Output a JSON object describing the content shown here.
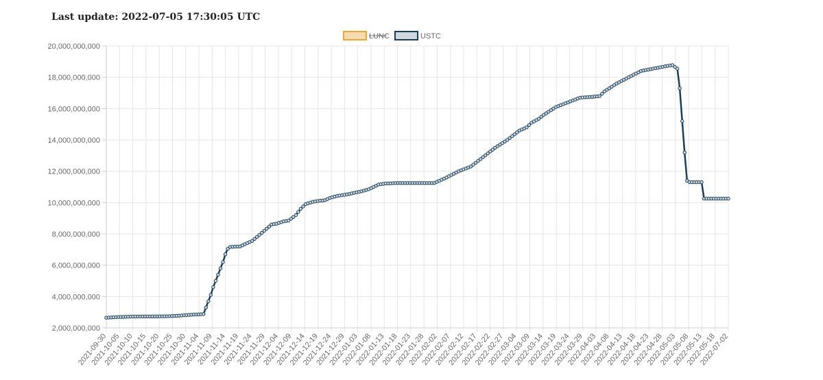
{
  "header": {
    "last_update": "Last update: 2022-07-05 17:30:05 UTC"
  },
  "colors": {
    "lunc": "#f5a623",
    "lunc_fill": "#f6d9b5",
    "ustc": "#183f5a",
    "ustc_fill": "#cfd8de"
  },
  "chart_data": {
    "type": "line",
    "y_ticks": [
      "20,000,000,000",
      "18,000,000,000",
      "16,000,000,000",
      "14,000,000,000",
      "12,000,000,000",
      "10,000,000,000",
      "8,000,000,000",
      "6,000,000,000",
      "4,000,000,000",
      "2,000,000,000"
    ],
    "ylim": [
      2000000000,
      20000000000
    ],
    "legend_position": "top",
    "grid": true,
    "x_ticks": [
      "2021-09-30",
      "2021-10-05",
      "2021-10-10",
      "2021-10-15",
      "2021-10-20",
      "2021-10-25",
      "2021-10-30",
      "2021-11-04",
      "2021-11-09",
      "2021-11-14",
      "2021-11-19",
      "2021-11-24",
      "2021-11-29",
      "2021-12-04",
      "2021-12-09",
      "2021-12-14",
      "2021-12-19",
      "2021-12-24",
      "2021-12-29",
      "2022-01-03",
      "2022-01-08",
      "2022-01-13",
      "2022-01-18",
      "2022-01-23",
      "2022-01-28",
      "2022-02-02",
      "2022-02-07",
      "2022-02-12",
      "2022-02-17",
      "2022-02-22",
      "2022-02-27",
      "2022-03-04",
      "2022-03-09",
      "2022-03-14",
      "2022-03-19",
      "2022-03-24",
      "2022-03-29",
      "2022-04-03",
      "2022-04-08",
      "2022-04-13",
      "2022-04-18",
      "2022-04-23",
      "2022-04-28",
      "2022-05-03",
      "2022-05-08",
      "2022-05-13",
      "2022-05-18",
      "2022-07-02"
    ],
    "series": [
      {
        "name": "LUNC",
        "hidden": true,
        "values": []
      },
      {
        "name": "USTC",
        "values": [
          [
            0,
            2650000000.0
          ],
          [
            5,
            2690000000.0
          ],
          [
            10,
            2720000000.0
          ],
          [
            15,
            2730000000.0
          ],
          [
            20,
            2730000000.0
          ],
          [
            25,
            2740000000.0
          ],
          [
            30,
            2780000000.0
          ],
          [
            35,
            2840000000.0
          ],
          [
            40,
            2880000000.0
          ],
          [
            41,
            3300000000.0
          ],
          [
            42,
            3700000000.0
          ],
          [
            43,
            4100000000.0
          ],
          [
            44,
            4600000000.0
          ],
          [
            45,
            5000000000.0
          ],
          [
            46,
            5400000000.0
          ],
          [
            47,
            5800000000.0
          ],
          [
            48,
            6200000000.0
          ],
          [
            49,
            6700000000.0
          ],
          [
            50,
            7050000000.0
          ],
          [
            51,
            7170000000.0
          ],
          [
            55,
            7200000000.0
          ],
          [
            60,
            7550000000.0
          ],
          [
            65,
            8200000000.0
          ],
          [
            68,
            8600000000.0
          ],
          [
            70,
            8650000000.0
          ],
          [
            73,
            8800000000.0
          ],
          [
            75,
            8850000000.0
          ],
          [
            78,
            9200000000.0
          ],
          [
            80,
            9600000000.0
          ],
          [
            82,
            9900000000.0
          ],
          [
            85,
            10050000000.0
          ],
          [
            88,
            10120000000.0
          ],
          [
            90,
            10150000000.0
          ],
          [
            92,
            10300000000.0
          ],
          [
            95,
            10420000000.0
          ],
          [
            100,
            10550000000.0
          ],
          [
            105,
            10720000000.0
          ],
          [
            108,
            10850000000.0
          ],
          [
            110,
            11000000000.0
          ],
          [
            112,
            11150000000.0
          ],
          [
            115,
            11220000000.0
          ],
          [
            120,
            11250000000.0
          ],
          [
            125,
            11250000000.0
          ],
          [
            130,
            11250000000.0
          ],
          [
            135,
            11250000000.0
          ],
          [
            140,
            11600000000.0
          ],
          [
            145,
            12000000000.0
          ],
          [
            150,
            12300000000.0
          ],
          [
            155,
            12900000000.0
          ],
          [
            160,
            13500000000.0
          ],
          [
            165,
            14000000000.0
          ],
          [
            170,
            14600000000.0
          ],
          [
            173,
            14800000000.0
          ],
          [
            175,
            15100000000.0
          ],
          [
            178,
            15350000000.0
          ],
          [
            180,
            15600000000.0
          ],
          [
            185,
            16100000000.0
          ],
          [
            190,
            16400000000.0
          ],
          [
            195,
            16700000000.0
          ],
          [
            200,
            16750000000.0
          ],
          [
            203,
            16800000000.0
          ],
          [
            205,
            17100000000.0
          ],
          [
            210,
            17600000000.0
          ],
          [
            215,
            18000000000.0
          ],
          [
            220,
            18400000000.0
          ],
          [
            225,
            18550000000.0
          ],
          [
            230,
            18700000000.0
          ],
          [
            233,
            18780000000.0
          ],
          [
            235,
            18550000000.0
          ],
          [
            236,
            17300000000.0
          ],
          [
            237,
            15200000000.0
          ],
          [
            238,
            13200000000.0
          ],
          [
            239,
            11400000000.0
          ],
          [
            240,
            11300000000.0
          ],
          [
            242,
            11300000000.0
          ],
          [
            245,
            11300000000.0
          ],
          [
            246,
            10250000000.0
          ],
          [
            250,
            10250000000.0
          ],
          [
            253,
            10250000000.0
          ],
          [
            255,
            10250000000.0
          ],
          [
            256,
            10250000000.0
          ]
        ]
      }
    ]
  }
}
